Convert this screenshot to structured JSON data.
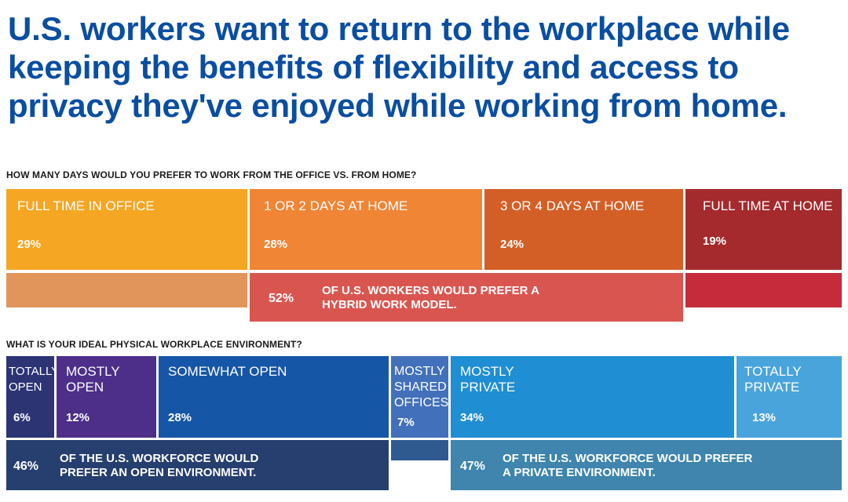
{
  "title": "U.S. workers want to return to the workplace while keeping the benefits of flexibility and access to privacy they've enjoyed while working from home.",
  "chart_data": [
    {
      "type": "bar",
      "title": "HOW MANY DAYS WOULD YOU PREFER TO WORK FROM THE OFFICE VS. FROM HOME?",
      "categories": [
        "FULL TIME IN OFFICE",
        "1 OR 2 DAYS AT HOME",
        "3 OR 4 DAYS AT HOME",
        "FULL TIME AT HOME"
      ],
      "values": [
        29,
        28,
        24,
        19
      ],
      "value_labels": [
        "29%",
        "28%",
        "24%",
        "19%"
      ],
      "colors": [
        "#f5a623",
        "#ef8535",
        "#d35f26",
        "#a42a2d"
      ],
      "summary": {
        "value": 52,
        "label": "52%",
        "text": "OF U.S. WORKERS WOULD PREFER A HYBRID WORK MODEL.",
        "color": "#d95650"
      }
    },
    {
      "type": "bar",
      "title": "WHAT IS YOUR IDEAL PHYSICAL WORKPLACE ENVIRONMENT?",
      "categories": [
        "TOTALLY OPEN",
        "MOSTLY OPEN",
        "SOMEWHAT OPEN",
        "MOSTLY SHARED OFFICES",
        "MOSTLY PRIVATE",
        "TOTALLY PRIVATE"
      ],
      "values": [
        6,
        12,
        28,
        7,
        34,
        13
      ],
      "value_labels": [
        "6%",
        "12%",
        "28%",
        "7%",
        "34%",
        "13%"
      ],
      "colors": [
        "#2c3474",
        "#4d2f8a",
        "#1656a6",
        "#4370ba",
        "#1f8ed3",
        "#4aa4dc"
      ],
      "summaries": [
        {
          "value": 46,
          "label": "46%",
          "text": "OF THE U.S. WORKFORCE WOULD PREFER AN OPEN ENVIRONMENT.",
          "color": "#263f6e"
        },
        {
          "value": 47,
          "label": "47%",
          "text": "OF THE U.S. WORKFORCE WOULD PREFER A PRIVATE ENVIRONMENT.",
          "color": "#3f85ad"
        }
      ]
    }
  ]
}
